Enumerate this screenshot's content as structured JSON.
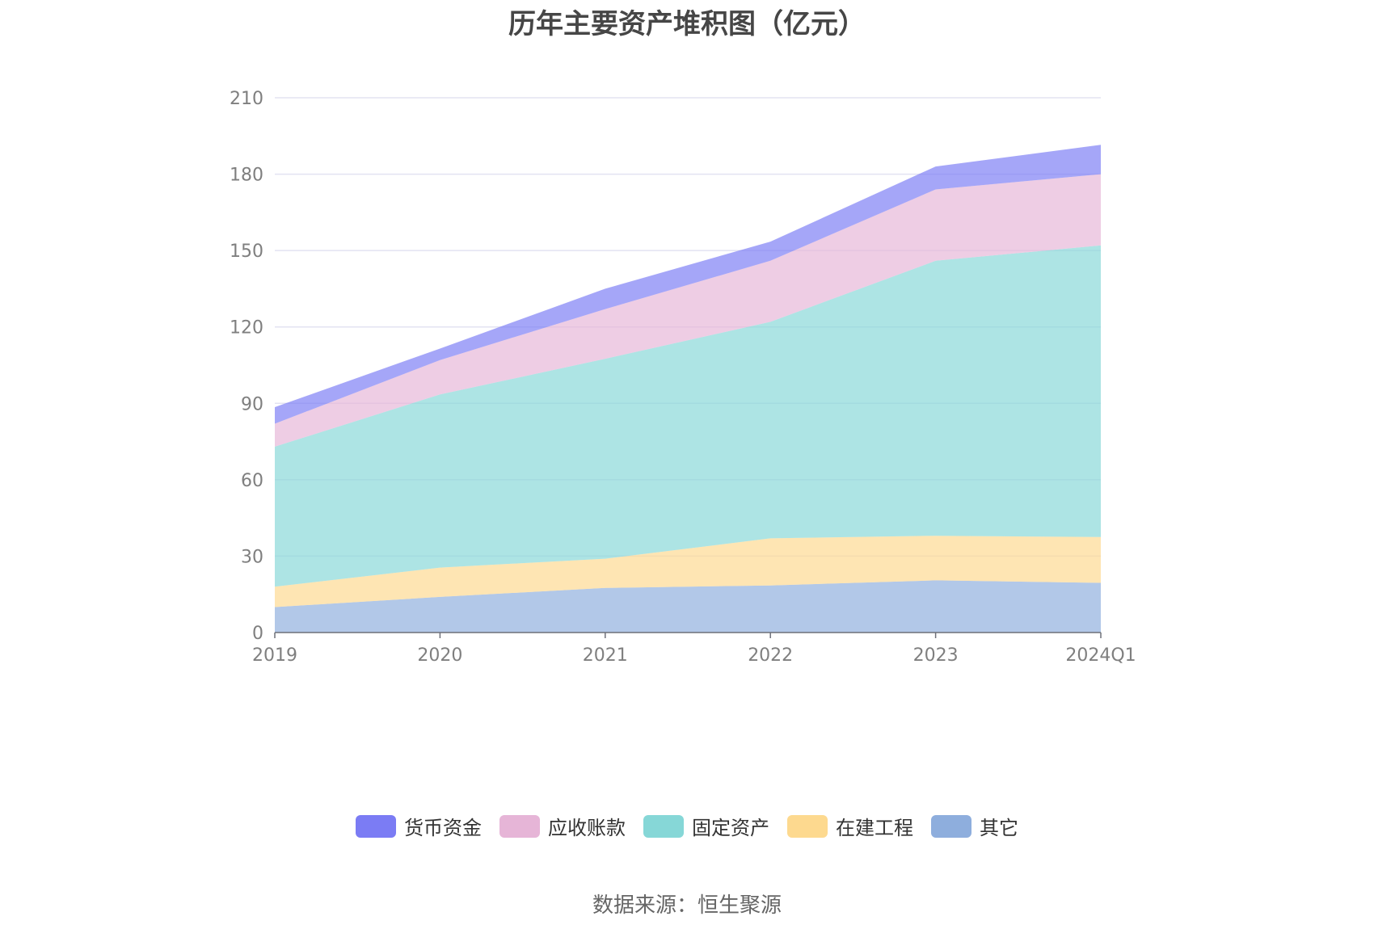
{
  "chart_data": {
    "type": "area",
    "stacked": true,
    "title": "历年主要资产堆积图（亿元）",
    "categories": [
      "2019",
      "2020",
      "2021",
      "2022",
      "2023",
      "2024Q1"
    ],
    "ylim": [
      0,
      210
    ],
    "yticks": [
      0,
      30,
      60,
      90,
      120,
      150,
      180,
      210
    ],
    "grid": true,
    "legend_position": "bottom",
    "series": [
      {
        "name": "其它",
        "color": "#8eaedd",
        "values": [
          10,
          14,
          17.5,
          18.5,
          20.5,
          19.5
        ]
      },
      {
        "name": "在建工程",
        "color": "#fdd98f",
        "values": [
          8,
          11.5,
          11.5,
          18.5,
          17.5,
          18
        ]
      },
      {
        "name": "固定资产",
        "color": "#86d7d7",
        "values": [
          55,
          68,
          78.5,
          85,
          108,
          114.5
        ]
      },
      {
        "name": "应收账款",
        "color": "#e6b5d7",
        "values": [
          9,
          13.5,
          19.5,
          24,
          28,
          28
        ]
      },
      {
        "name": "货币资金",
        "color": "#7b7cf4",
        "values": [
          6.5,
          4.5,
          8,
          7.5,
          9,
          11.5
        ]
      }
    ],
    "legend_order": [
      "货币资金",
      "应收账款",
      "固定资产",
      "在建工程",
      "其它"
    ]
  },
  "source_label": "数据来源：恒生聚源"
}
